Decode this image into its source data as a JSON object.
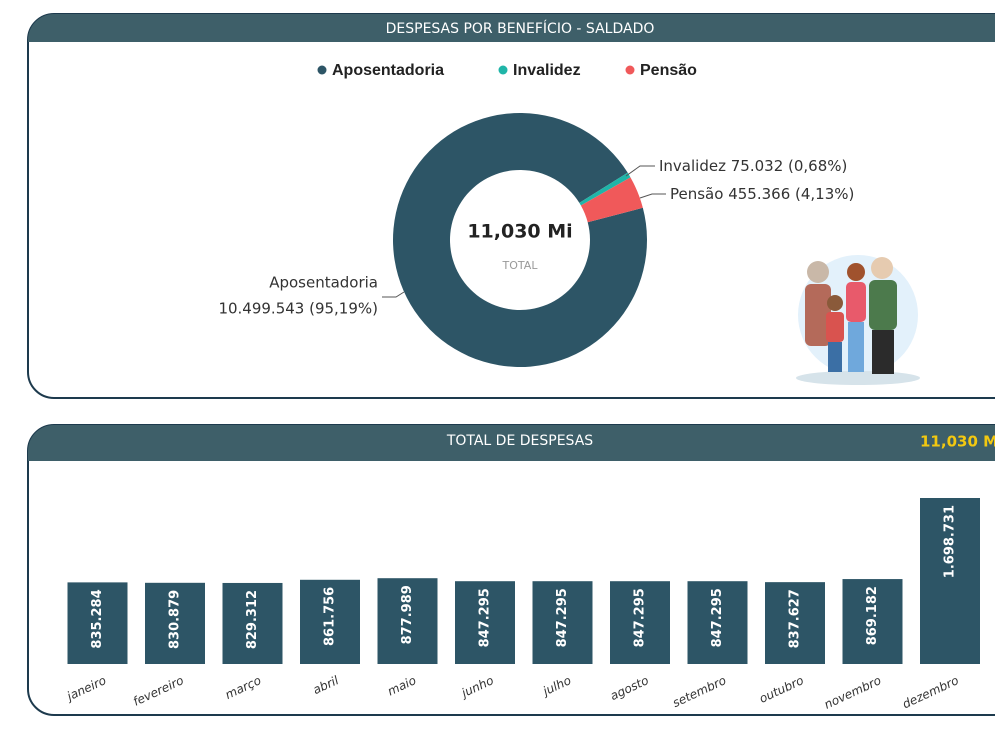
{
  "chart_data": [
    {
      "type": "donut",
      "title": "DESPESAS POR BENEFÍCIO - SALDADO",
      "categories": [
        "Aposentadoria",
        "Invalidez",
        "Pensão"
      ],
      "values": [
        10499543,
        75032,
        455366
      ],
      "value_labels": [
        "10.499.543 (95,19%)",
        "75.032 (0,68%)",
        "455.366 (4,13%)"
      ],
      "colors": [
        "#2d5566",
        "#1fb5a8",
        "#f0595a"
      ],
      "center_value": "11,030 Mi",
      "center_label": "TOTAL"
    },
    {
      "type": "bar",
      "title": "TOTAL DE DESPESAS",
      "total": "11,030 M",
      "categories": [
        "janeiro",
        "fevereiro",
        "março",
        "abril",
        "maio",
        "junho",
        "julho",
        "agosto",
        "setembro",
        "outubro",
        "novembro",
        "dezembro"
      ],
      "values": [
        835284,
        830879,
        829312,
        861756,
        877989,
        847295,
        847295,
        847295,
        847295,
        837627,
        869182,
        1698731
      ],
      "value_labels": [
        "835.284",
        "830.879",
        "829.312",
        "861.756",
        "877.989",
        "847.295",
        "847.295",
        "847.295",
        "847.295",
        "837.627",
        "869.182",
        "1.698.731"
      ],
      "color": "#2d5566"
    }
  ]
}
